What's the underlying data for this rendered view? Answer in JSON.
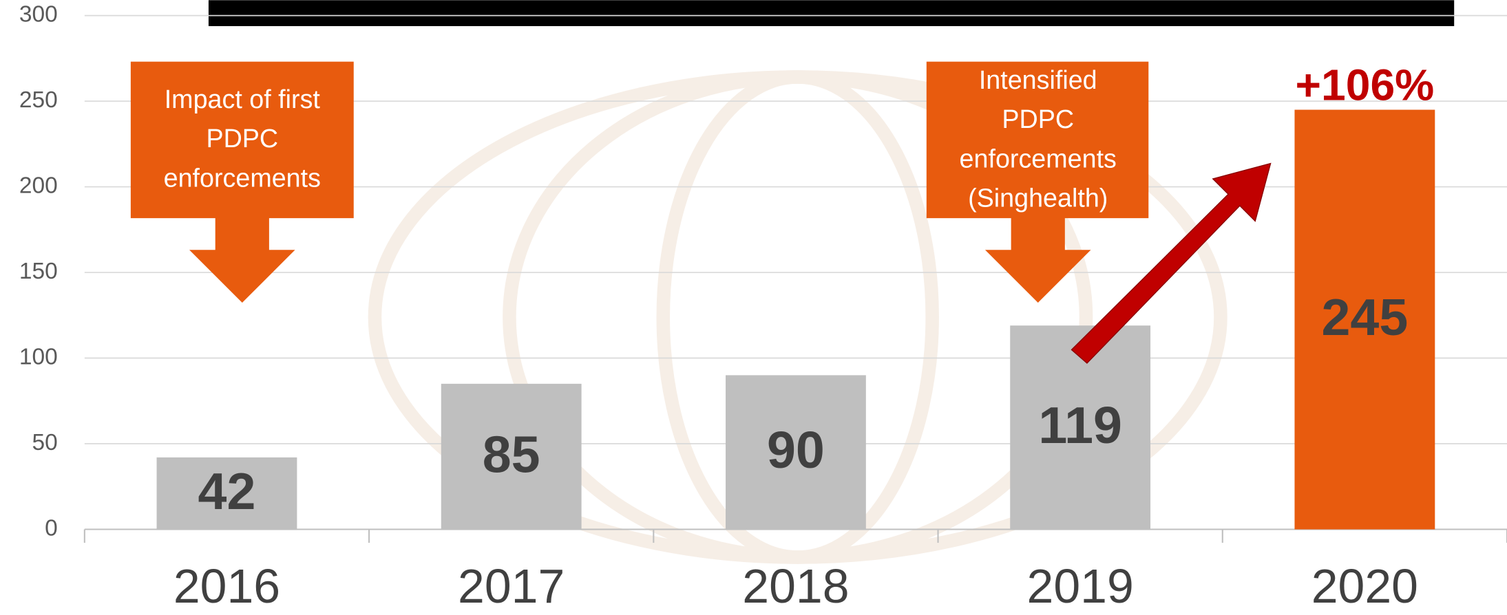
{
  "chart_data": {
    "type": "bar",
    "categories": [
      "2016",
      "2017",
      "2018",
      "2019",
      "2020"
    ],
    "values": [
      42,
      85,
      90,
      119,
      245
    ],
    "colors": [
      "#bfbfbf",
      "#bfbfbf",
      "#bfbfbf",
      "#bfbfbf",
      "#e85b0e"
    ],
    "ylim": [
      0,
      300
    ],
    "yticks": [
      0,
      50,
      100,
      150,
      200,
      250,
      300
    ],
    "grid": true,
    "annotations": [
      {
        "lines": [
          "Impact of first",
          "PDPC",
          "enforcements"
        ]
      },
      {
        "lines": [
          "Intensified",
          "PDPC",
          "enforcements",
          "(Singhealth)"
        ]
      },
      {
        "text": "+106%"
      }
    ]
  }
}
